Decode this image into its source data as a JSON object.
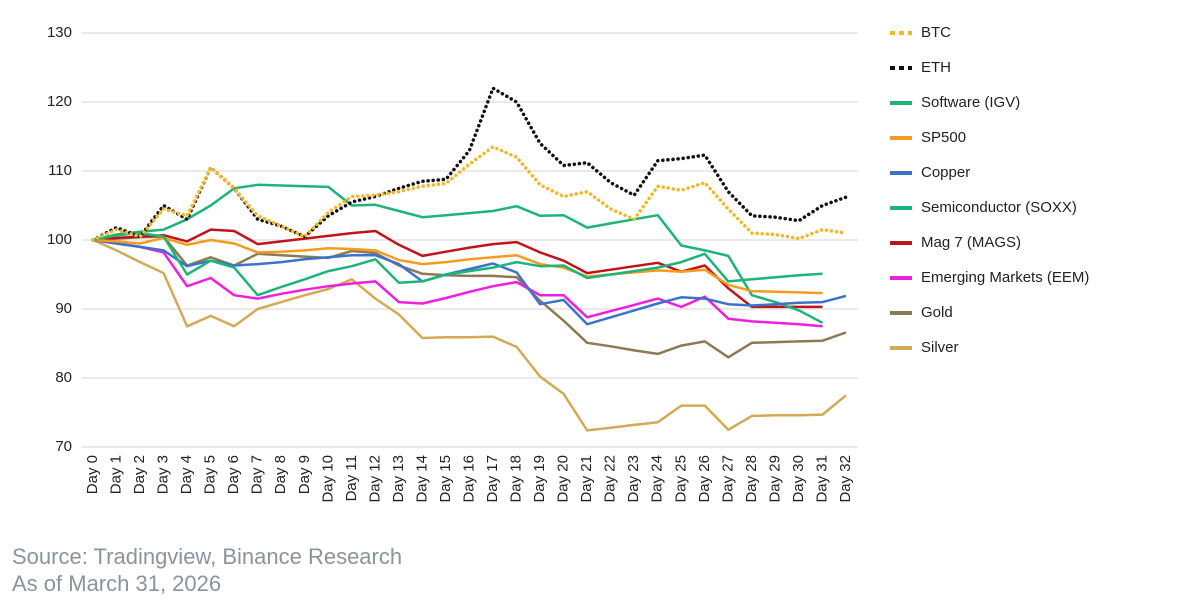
{
  "chart_data": {
    "type": "line",
    "categories": [
      "Day 0",
      "Day 1",
      "Day 2",
      "Day 3",
      "Day 4",
      "Day 5",
      "Day 6",
      "Day 7",
      "Day 8",
      "Day 9",
      "Day 10",
      "Day 11",
      "Day 12",
      "Day 13",
      "Day 14",
      "Day 15",
      "Day 16",
      "Day 17",
      "Day 18",
      "Day 19",
      "Day 20",
      "Day 21",
      "Day 22",
      "Day 23",
      "Day 24",
      "Day 25",
      "Day 26",
      "Day 27",
      "Day 28",
      "Day 29",
      "Day 30",
      "Day 31",
      "Day 32"
    ],
    "ylim": [
      70,
      130
    ],
    "yticks": [
      70,
      80,
      90,
      100,
      110,
      120,
      130
    ],
    "grid": true,
    "legend": "right",
    "series": [
      {
        "name": "BTC",
        "color": "#f2b82a",
        "dotted": true,
        "values": [
          100,
          101.5,
          100.5,
          104.5,
          103.5,
          110.5,
          107.5,
          103.5,
          102,
          100.5,
          104,
          106.3,
          106.5,
          107,
          107.8,
          108.2,
          111,
          113.5,
          112,
          108,
          106.3,
          107,
          104.5,
          103,
          107.8,
          107.2,
          108.3,
          104.5,
          101,
          100.8,
          100.2,
          101.5,
          101
        ]
      },
      {
        "name": "ETH",
        "color": "#111111",
        "dotted": true,
        "values": [
          100,
          101.8,
          100.5,
          105,
          103,
          110.5,
          107.5,
          103,
          102,
          100.5,
          103.5,
          105.5,
          106.3,
          107.5,
          108.5,
          108.8,
          113,
          122,
          120,
          114,
          110.8,
          111.2,
          108.3,
          106.5,
          111.5,
          111.8,
          112.3,
          107,
          103.5,
          103.3,
          102.8,
          105,
          106.2
        ]
      },
      {
        "name": "Software (IGV)",
        "color": "#1db47a",
        "values": [
          100,
          100.7,
          101,
          100.5,
          95,
          97,
          96,
          92,
          93.2,
          94.3,
          95.5,
          96.2,
          97.2,
          93.8,
          94,
          95,
          95.5,
          96,
          96.8,
          96.2,
          96.3,
          94.5,
          95,
          95.5,
          96,
          96.8,
          98,
          94,
          94.3,
          94.6,
          94.9,
          95.1,
          null
        ]
      },
      {
        "name": "SP500",
        "color": "#f59c1e",
        "values": [
          100,
          99.8,
          99.5,
          100.3,
          99.3,
          100,
          99.5,
          98.2,
          98.3,
          98.5,
          98.8,
          98.7,
          98.5,
          97.1,
          96.5,
          96.8,
          97.2,
          97.5,
          97.8,
          96.5,
          96,
          94.7,
          95,
          95.3,
          95.6,
          95.4,
          95.7,
          93.5,
          92.6,
          92.5,
          92.4,
          92.3,
          null
        ]
      },
      {
        "name": "Copper",
        "color": "#3b73c9",
        "values": [
          100,
          99.5,
          99,
          98.5,
          96.2,
          97,
          96.3,
          96.5,
          96.8,
          97.2,
          97.5,
          97.8,
          97.8,
          96.5,
          94,
          95,
          95.8,
          96.6,
          95.3,
          90.7,
          91.3,
          87.8,
          88.8,
          89.8,
          90.8,
          91.7,
          91.5,
          90.7,
          90.5,
          90.7,
          90.9,
          91,
          91.9
        ]
      },
      {
        "name": "Semiconductor (SOXX)",
        "color": "#1db47a",
        "values": [
          100,
          100.8,
          101.2,
          101.5,
          103,
          105,
          107.5,
          108,
          107.9,
          107.8,
          107.7,
          105,
          105.1,
          104.2,
          103.3,
          103.6,
          103.9,
          104.2,
          104.9,
          103.5,
          103.6,
          101.8,
          102.4,
          103,
          103.6,
          99.2,
          98.5,
          97.7,
          92,
          91,
          89.8,
          88,
          null
        ]
      },
      {
        "name": "Mag 7 (MAGS)",
        "color": "#c0141b",
        "values": [
          100,
          100.3,
          100.5,
          100.7,
          99.8,
          101.5,
          101.3,
          99.4,
          99.8,
          100.2,
          100.6,
          101,
          101.3,
          99.3,
          97.7,
          98.3,
          98.9,
          99.4,
          99.7,
          98.2,
          97,
          95.2,
          95.7,
          96.2,
          96.7,
          95.4,
          96.3,
          93,
          90.3,
          90.3,
          90.3,
          90.3,
          null
        ]
      },
      {
        "name": "Emerging Markets (EEM)",
        "color": "#f01ee0",
        "values": [
          100,
          99.5,
          99,
          98.2,
          93.3,
          94.5,
          92,
          91.5,
          92.2,
          92.8,
          93.3,
          93.7,
          94,
          91,
          90.8,
          91.6,
          92.5,
          93.3,
          93.9,
          92,
          92,
          88.8,
          89.7,
          90.6,
          91.5,
          90.3,
          91.8,
          88.6,
          88.2,
          88,
          87.8,
          87.5,
          null
        ]
      },
      {
        "name": "Gold",
        "color": "#8b7a55",
        "values": [
          100,
          100.2,
          100.4,
          100.5,
          96.3,
          97.5,
          96.3,
          98,
          97.8,
          97.6,
          97.4,
          98.4,
          98.1,
          96.3,
          95.1,
          94.9,
          94.8,
          94.8,
          94.6,
          91.2,
          88.3,
          85.1,
          84.6,
          84,
          83.5,
          84.7,
          85.3,
          83,
          85.1,
          85.2,
          85.3,
          85.4,
          86.6
        ]
      },
      {
        "name": "Silver",
        "color": "#d3aa55",
        "values": [
          100,
          98.5,
          96.8,
          95.2,
          87.5,
          89,
          87.5,
          90,
          91,
          92,
          92.9,
          94.3,
          91.5,
          89.2,
          85.8,
          85.9,
          85.9,
          86,
          84.5,
          80.2,
          77.7,
          72.4,
          72.8,
          73.2,
          73.6,
          76,
          76,
          72.5,
          74.5,
          74.6,
          74.6,
          74.7,
          77.5
        ]
      }
    ],
    "source": [
      "Source: Tradingview, Binance Research",
      "As of March 31, 2026"
    ]
  }
}
